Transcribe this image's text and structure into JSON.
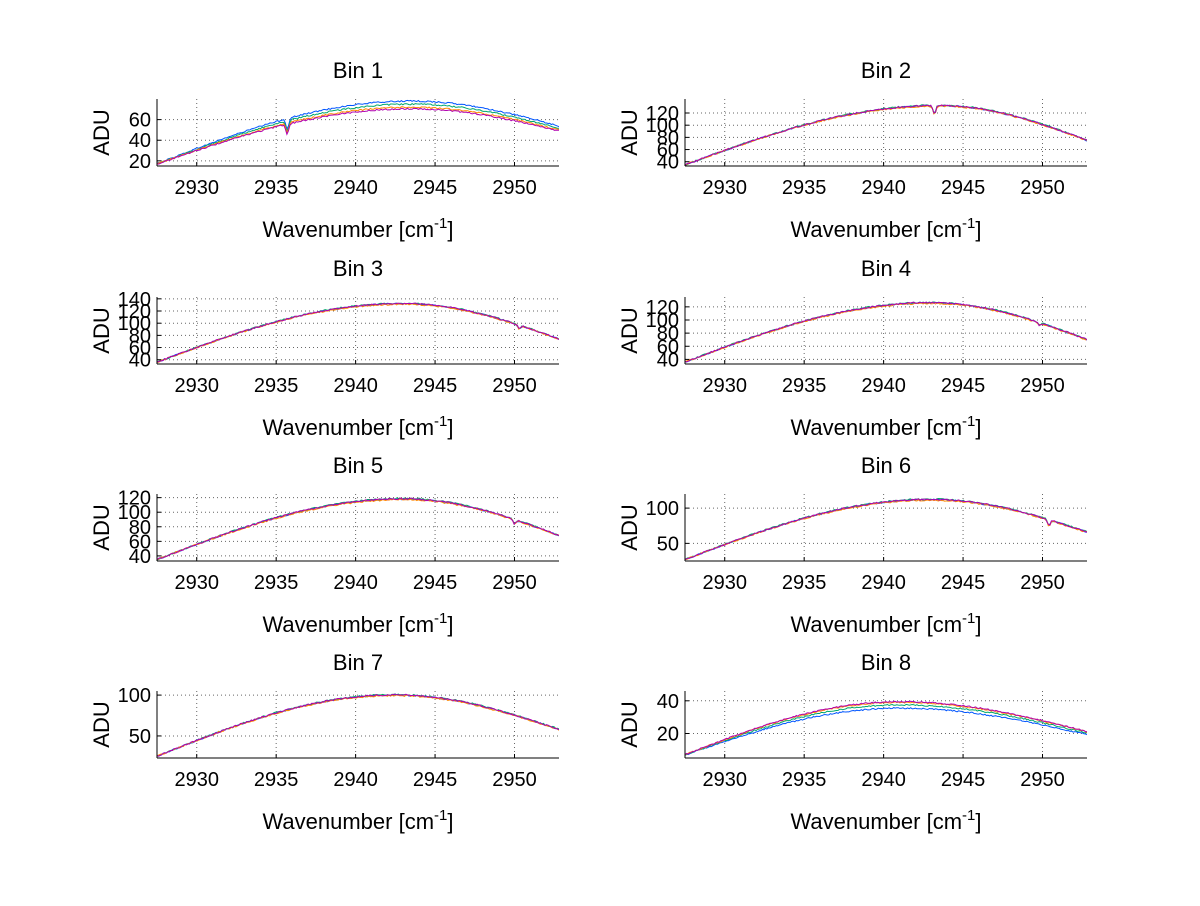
{
  "figure": {
    "colors": {
      "background": "#ffffff",
      "axes": "#000000",
      "grid": "#666666"
    },
    "series_colors": [
      "#0055ff",
      "#00a86b",
      "#ff8800",
      "#b000b0",
      "#ff0000",
      "#000080"
    ]
  },
  "chart_data": [
    {
      "type": "line",
      "title": "Bin 1",
      "xlabel": "Wavenumber [cm",
      "xlabel_sup": "-1",
      "xlabel_end": "]",
      "ylabel": "ADU",
      "xlim": [
        2927.5,
        2952.8
      ],
      "ylim": [
        15,
        80
      ],
      "xticks": [
        2930,
        2935,
        2940,
        2945,
        2950
      ],
      "yticks": [
        20,
        40,
        60
      ],
      "grid": true,
      "profile": {
        "start": 17,
        "peak": 72,
        "center": 2943.5,
        "end": 50
      },
      "series_offsets": [
        6,
        3,
        0,
        -1.5
      ],
      "dips": [
        {
          "x": 2935.7,
          "depth": 10
        }
      ]
    },
    {
      "type": "line",
      "title": "Bin 2",
      "xlabel": "Wavenumber [cm",
      "xlabel_sup": "-1",
      "xlabel_end": "]",
      "ylabel": "ADU",
      "xlim": [
        2927.5,
        2952.8
      ],
      "ylim": [
        33,
        143
      ],
      "xticks": [
        2930,
        2935,
        2940,
        2945,
        2950
      ],
      "yticks": [
        40,
        60,
        80,
        100,
        120
      ],
      "grid": true,
      "profile": {
        "start": 35,
        "peak": 132,
        "center": 2943.5,
        "end": 75
      },
      "series_offsets": [
        0,
        0.8,
        -0.8,
        0.4
      ],
      "dips": [
        {
          "x": 2943.2,
          "depth": 14
        }
      ]
    },
    {
      "type": "line",
      "title": "Bin 3",
      "xlabel": "Wavenumber [cm",
      "xlabel_sup": "-1",
      "xlabel_end": "]",
      "ylabel": "ADU",
      "xlim": [
        2927.5,
        2952.8
      ],
      "ylim": [
        33,
        143
      ],
      "xticks": [
        2930,
        2935,
        2940,
        2945,
        2950
      ],
      "yticks": [
        40,
        60,
        80,
        100,
        120,
        140
      ],
      "grid": true,
      "profile": {
        "start": 36,
        "peak": 132,
        "center": 2943,
        "end": 74
      },
      "series_offsets": [
        0,
        0.8,
        -0.8,
        0.4
      ],
      "dips": [
        {
          "x": 2950.3,
          "depth": 6
        }
      ]
    },
    {
      "type": "line",
      "title": "Bin 4",
      "xlabel": "Wavenumber [cm",
      "xlabel_sup": "-1",
      "xlabel_end": "]",
      "ylabel": "ADU",
      "xlim": [
        2927.5,
        2952.8
      ],
      "ylim": [
        33,
        135
      ],
      "xticks": [
        2930,
        2935,
        2940,
        2945,
        2950
      ],
      "yticks": [
        40,
        60,
        80,
        100,
        120
      ],
      "grid": true,
      "profile": {
        "start": 36,
        "peak": 126,
        "center": 2943,
        "end": 70
      },
      "series_offsets": [
        0,
        0.8,
        -0.8,
        0.4
      ],
      "dips": [
        {
          "x": 2949.8,
          "depth": 4
        }
      ]
    },
    {
      "type": "line",
      "title": "Bin 5",
      "xlabel": "Wavenumber [cm",
      "xlabel_sup": "-1",
      "xlabel_end": "]",
      "ylabel": "ADU",
      "xlim": [
        2927.5,
        2952.8
      ],
      "ylim": [
        33,
        125
      ],
      "xticks": [
        2930,
        2935,
        2940,
        2945,
        2950
      ],
      "yticks": [
        40,
        60,
        80,
        100,
        120
      ],
      "grid": true,
      "profile": {
        "start": 35,
        "peak": 118,
        "center": 2943,
        "end": 68
      },
      "series_offsets": [
        0,
        0.8,
        -0.8,
        0.4
      ],
      "dips": [
        {
          "x": 2950.0,
          "depth": 6
        }
      ]
    },
    {
      "type": "line",
      "title": "Bin 6",
      "xlabel": "Wavenumber [cm",
      "xlabel_sup": "-1",
      "xlabel_end": "]",
      "ylabel": "ADU",
      "xlim": [
        2927.5,
        2952.8
      ],
      "ylim": [
        25,
        120
      ],
      "xticks": [
        2930,
        2935,
        2940,
        2945,
        2950
      ],
      "yticks": [
        50,
        100
      ],
      "grid": true,
      "profile": {
        "start": 27,
        "peak": 112,
        "center": 2943,
        "end": 66
      },
      "series_offsets": [
        0,
        0.8,
        -0.8,
        0.4
      ],
      "dips": [
        {
          "x": 2950.4,
          "depth": 8
        }
      ]
    },
    {
      "type": "line",
      "title": "Bin 7",
      "xlabel": "Wavenumber [cm",
      "xlabel_sup": "-1",
      "xlabel_end": "]",
      "ylabel": "ADU",
      "xlim": [
        2927.5,
        2952.8
      ],
      "ylim": [
        23,
        105
      ],
      "xticks": [
        2930,
        2935,
        2940,
        2945,
        2950
      ],
      "yticks": [
        50,
        100
      ],
      "grid": true,
      "profile": {
        "start": 25,
        "peak": 100,
        "center": 2942.5,
        "end": 58
      },
      "series_offsets": [
        0,
        0.6,
        -0.6,
        0.3
      ],
      "dips": []
    },
    {
      "type": "line",
      "title": "Bin 8",
      "xlabel": "Wavenumber [cm",
      "xlabel_sup": "-1",
      "xlabel_end": "]",
      "ylabel": "ADU",
      "xlim": [
        2927.5,
        2952.8
      ],
      "ylim": [
        5,
        46
      ],
      "xticks": [
        2930,
        2935,
        2940,
        2945,
        2950
      ],
      "yticks": [
        20,
        40
      ],
      "grid": true,
      "profile": {
        "start": 7,
        "peak": 39,
        "center": 2941,
        "end": 21
      },
      "series_offsets": [
        -3.5,
        -1.5,
        0,
        0.5
      ],
      "dips": []
    }
  ]
}
